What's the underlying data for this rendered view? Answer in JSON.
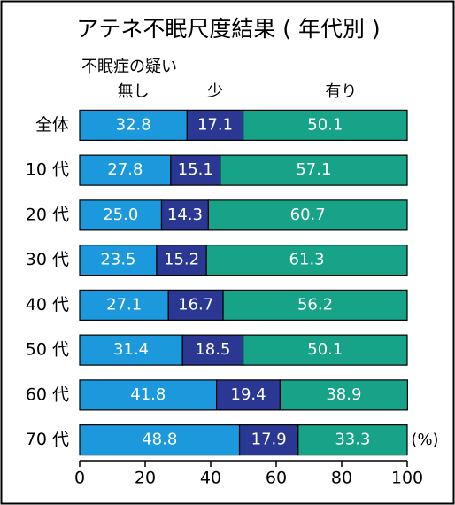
{
  "chart_data": {
    "type": "stacked-bar-horizontal",
    "title": "アテネ不眠尺度結果 ( 年代別 )",
    "subtitle": "不眠症の疑い",
    "categories": [
      "全体",
      "10 代",
      "20 代",
      "30 代",
      "40 代",
      "50 代",
      "60 代",
      "70 代"
    ],
    "series": [
      {
        "name": "無し",
        "color": "#1c98dd",
        "values": [
          32.8,
          27.8,
          25.0,
          23.5,
          27.1,
          31.4,
          41.8,
          48.8
        ],
        "value_labels": [
          "32.8",
          "27.8",
          "25.0",
          "23.5",
          "27.1",
          "31.4",
          "41.8",
          "48.8"
        ]
      },
      {
        "name": "少",
        "color": "#2b3893",
        "values": [
          17.1,
          15.1,
          14.3,
          15.2,
          16.7,
          18.5,
          19.4,
          17.9
        ],
        "value_labels": [
          "17.1",
          "15.1",
          "14.3",
          "15.2",
          "16.7",
          "18.5",
          "19.4",
          "17.9"
        ]
      },
      {
        "name": "有り",
        "color": "#17a387",
        "values": [
          50.1,
          57.1,
          60.7,
          61.3,
          56.2,
          50.1,
          38.9,
          33.3
        ],
        "value_labels": [
          "50.1",
          "57.1",
          "60.7",
          "61.3",
          "56.2",
          "50.1",
          "38.9",
          "33.3"
        ]
      }
    ],
    "x_unit": "(%)",
    "xlim": [
      0,
      100
    ],
    "xticks": [
      0,
      20,
      40,
      60,
      80,
      100
    ]
  }
}
